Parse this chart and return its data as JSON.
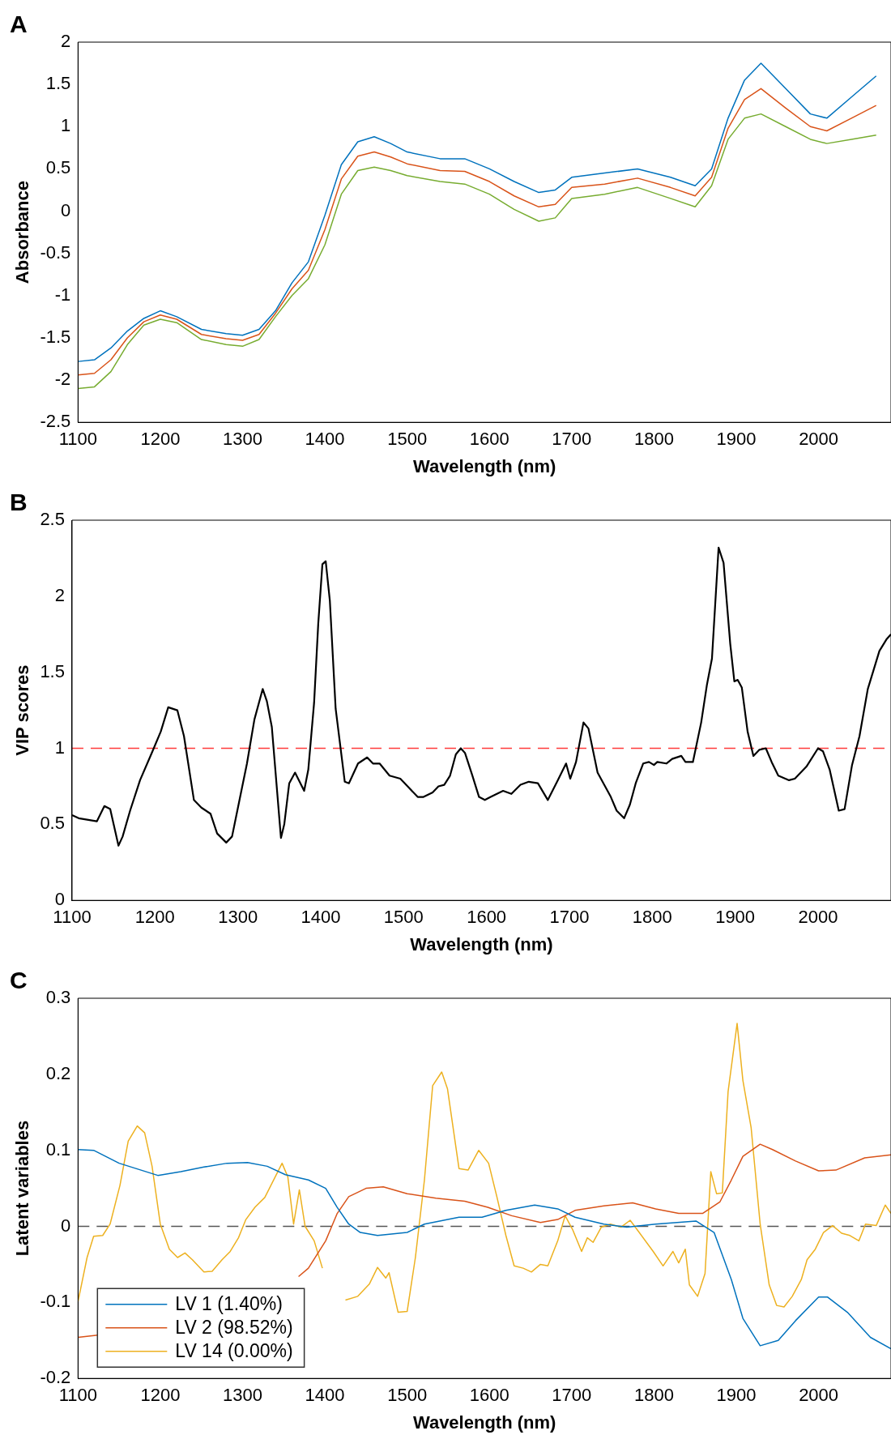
{
  "chart_data": [
    {
      "type": "line",
      "title": "A",
      "xlabel": "Wavelength (nm)",
      "ylabel": "Absorbance",
      "xlim": [
        1100,
        2088
      ],
      "xticks": [
        1100,
        1200,
        1300,
        1400,
        1500,
        1600,
        1700,
        1800,
        1900,
        2000
      ],
      "ylim": [
        -2.5,
        2
      ],
      "yticks": [
        -2.5,
        -2,
        -1.5,
        -1,
        -0.5,
        0,
        0.5,
        1,
        1.5,
        2
      ],
      "marker": "none",
      "line_style": "solid",
      "x": [
        1100,
        1120,
        1140,
        1160,
        1180,
        1200,
        1220,
        1250,
        1280,
        1300,
        1320,
        1340,
        1360,
        1380,
        1400,
        1420,
        1440,
        1460,
        1480,
        1500,
        1540,
        1570,
        1600,
        1630,
        1660,
        1680,
        1700,
        1740,
        1780,
        1820,
        1850,
        1870,
        1890,
        1910,
        1930,
        1960,
        1990,
        2010,
        2040,
        2070
      ],
      "series": [
        {
          "color": "#0072bd",
          "values": [
            -1.78,
            -1.76,
            -1.62,
            -1.42,
            -1.27,
            -1.18,
            -1.25,
            -1.4,
            -1.45,
            -1.47,
            -1.4,
            -1.18,
            -0.85,
            -0.6,
            -0.05,
            0.55,
            0.82,
            0.88,
            0.8,
            0.7,
            0.62,
            0.62,
            0.5,
            0.35,
            0.22,
            0.25,
            0.4,
            0.45,
            0.5,
            0.4,
            0.3,
            0.5,
            1.1,
            1.55,
            1.75,
            1.45,
            1.15,
            1.1,
            1.35,
            1.6
          ]
        },
        {
          "color": "#d95319",
          "values": [
            -1.94,
            -1.92,
            -1.76,
            -1.5,
            -1.31,
            -1.23,
            -1.28,
            -1.46,
            -1.51,
            -1.53,
            -1.46,
            -1.21,
            -0.92,
            -0.7,
            -0.22,
            0.38,
            0.65,
            0.7,
            0.64,
            0.56,
            0.48,
            0.47,
            0.35,
            0.18,
            0.05,
            0.08,
            0.28,
            0.32,
            0.39,
            0.28,
            0.18,
            0.4,
            0.98,
            1.32,
            1.45,
            1.22,
            1.0,
            0.95,
            1.1,
            1.25
          ]
        },
        {
          "color": "#77ac30",
          "values": [
            -2.1,
            -2.08,
            -1.9,
            -1.58,
            -1.35,
            -1.28,
            -1.32,
            -1.52,
            -1.58,
            -1.6,
            -1.52,
            -1.25,
            -1.0,
            -0.8,
            -0.4,
            0.2,
            0.48,
            0.52,
            0.48,
            0.42,
            0.35,
            0.32,
            0.2,
            0.02,
            -0.12,
            -0.08,
            0.15,
            0.2,
            0.28,
            0.15,
            0.05,
            0.3,
            0.85,
            1.1,
            1.15,
            1.0,
            0.85,
            0.8,
            0.85,
            0.9
          ]
        }
      ]
    },
    {
      "type": "line",
      "title": "B",
      "xlabel": "Wavelength (nm)",
      "ylabel": "VIP scores",
      "xlim": [
        1100,
        2088
      ],
      "xticks": [
        1100,
        1200,
        1300,
        1400,
        1500,
        1600,
        1700,
        1800,
        1900,
        2000
      ],
      "ylim": [
        0,
        2.5
      ],
      "yticks": [
        0,
        0.5,
        1,
        1.5,
        2,
        2.5
      ],
      "marker": "none",
      "line_style": "solid",
      "ref_lines": [
        {
          "axis": "y",
          "value": 1,
          "color": "#ff3b3b",
          "line_style": "dashed"
        }
      ],
      "x": [
        1100,
        1108,
        1130,
        1139,
        1146,
        1156,
        1161,
        1170,
        1182,
        1197,
        1207,
        1216,
        1227,
        1235,
        1247,
        1256,
        1267,
        1275,
        1286,
        1293,
        1302,
        1311,
        1320,
        1330,
        1335,
        1341,
        1352,
        1356,
        1362,
        1369,
        1380,
        1385,
        1392,
        1397,
        1402,
        1406,
        1411,
        1418,
        1429,
        1434,
        1445,
        1456,
        1463,
        1471,
        1483,
        1496,
        1503,
        1517,
        1524,
        1535,
        1542,
        1549,
        1556,
        1563,
        1569,
        1574,
        1583,
        1591,
        1598,
        1605,
        1620,
        1630,
        1641,
        1651,
        1662,
        1674,
        1686,
        1696,
        1701,
        1708,
        1717,
        1723,
        1734,
        1742,
        1750,
        1757,
        1766,
        1773,
        1780,
        1789,
        1796,
        1802,
        1806,
        1817,
        1824,
        1835,
        1840,
        1849,
        1859,
        1866,
        1872,
        1880,
        1886,
        1894,
        1899,
        1903,
        1908,
        1915,
        1922,
        1929,
        1937,
        1944,
        1952,
        1965,
        1972,
        1986,
        2000,
        2006,
        2014,
        2025,
        2032,
        2041,
        2050,
        2060,
        2074,
        2083,
        2088
      ],
      "series": [
        {
          "color": "#000000",
          "values": [
            0.56,
            0.54,
            0.52,
            0.62,
            0.6,
            0.36,
            0.42,
            0.59,
            0.79,
            0.98,
            1.11,
            1.27,
            1.25,
            1.08,
            0.66,
            0.61,
            0.57,
            0.44,
            0.38,
            0.42,
            0.66,
            0.9,
            1.19,
            1.39,
            1.31,
            1.14,
            0.41,
            0.5,
            0.77,
            0.84,
            0.72,
            0.86,
            1.3,
            1.82,
            2.21,
            2.23,
            1.97,
            1.26,
            0.78,
            0.77,
            0.9,
            0.94,
            0.9,
            0.9,
            0.82,
            0.8,
            0.76,
            0.68,
            0.68,
            0.71,
            0.75,
            0.76,
            0.82,
            0.96,
            1.0,
            0.97,
            0.82,
            0.68,
            0.66,
            0.68,
            0.72,
            0.7,
            0.76,
            0.78,
            0.77,
            0.66,
            0.79,
            0.9,
            0.8,
            0.91,
            1.17,
            1.13,
            0.84,
            0.76,
            0.68,
            0.59,
            0.54,
            0.63,
            0.77,
            0.9,
            0.91,
            0.89,
            0.91,
            0.9,
            0.93,
            0.95,
            0.91,
            0.91,
            1.17,
            1.42,
            1.59,
            2.32,
            2.22,
            1.69,
            1.44,
            1.45,
            1.4,
            1.11,
            0.95,
            0.99,
            1.0,
            0.91,
            0.82,
            0.79,
            0.8,
            0.88,
            1.0,
            0.98,
            0.86,
            0.59,
            0.6,
            0.89,
            1.08,
            1.39,
            1.64,
            1.72,
            1.75
          ]
        }
      ]
    },
    {
      "type": "line",
      "title": "C",
      "xlabel": "Wavelength (nm)",
      "ylabel": "Latent variables",
      "xlim": [
        1100,
        2088
      ],
      "xticks": [
        1100,
        1200,
        1300,
        1400,
        1500,
        1600,
        1700,
        1800,
        1900,
        2000
      ],
      "ylim": [
        -0.2,
        0.3
      ],
      "yticks": [
        -0.2,
        -0.1,
        0,
        0.1,
        0.2,
        0.3
      ],
      "marker": "none",
      "line_style": "solid",
      "legend": "bottom left",
      "ref_lines": [
        {
          "axis": "y",
          "value": 0,
          "color": "#555555",
          "line_style": "dashed"
        }
      ],
      "series": [
        {
          "name": "LV 1 (1.40%)",
          "color": "#0072bd",
          "x": [
            1100,
            1119,
            1150,
            1197,
            1225,
            1253,
            1281,
            1306,
            1330,
            1352,
            1380,
            1401,
            1415,
            1429,
            1443,
            1464,
            1500,
            1521,
            1563,
            1591,
            1620,
            1655,
            1683,
            1704,
            1739,
            1767,
            1802,
            1851,
            1873,
            1894,
            1908,
            1929,
            1951,
            1972,
            2000,
            2011,
            2035,
            2063,
            2088
          ],
          "values": [
            0.101,
            0.1,
            0.083,
            0.067,
            0.072,
            0.078,
            0.083,
            0.084,
            0.079,
            0.068,
            0.061,
            0.05,
            0.025,
            0.003,
            -0.008,
            -0.012,
            -0.008,
            0.003,
            0.012,
            0.012,
            0.021,
            0.028,
            0.023,
            0.012,
            0.003,
            -0.001,
            0.003,
            0.007,
            -0.008,
            -0.07,
            -0.121,
            -0.157,
            -0.15,
            -0.124,
            -0.093,
            -0.093,
            -0.113,
            -0.146,
            -0.161
          ]
        },
        {
          "name": "LV 2 (98.52%)",
          "color": "#d95319",
          "x": [
            1100,
            1124,
            1240,
            1368,
            1380,
            1401,
            1415,
            1429,
            1450,
            1471,
            1500,
            1535,
            1570,
            1598,
            1627,
            1662,
            1683,
            1704,
            1739,
            1774,
            1802,
            1830,
            1859,
            1880,
            1894,
            1908,
            1929,
            1944,
            1972,
            2000,
            2021,
            2056,
            2088
          ],
          "values": [
            -0.146,
            -0.143,
            null,
            -0.066,
            -0.055,
            -0.019,
            0.017,
            0.039,
            0.05,
            0.052,
            0.043,
            0.037,
            0.033,
            0.025,
            0.014,
            0.005,
            0.009,
            0.021,
            0.027,
            0.031,
            0.023,
            0.017,
            0.017,
            0.032,
            0.061,
            0.092,
            0.108,
            0.101,
            0.086,
            0.073,
            0.074,
            0.09,
            0.094
          ]
        },
        {
          "name": "LV 14 (0.00%)",
          "color": "#edb120",
          "x": [
            1100,
            1111,
            1119,
            1130,
            1139,
            1151,
            1161,
            1172,
            1181,
            1190,
            1200,
            1211,
            1221,
            1230,
            1239,
            1253,
            1263,
            1275,
            1285,
            1295,
            1304,
            1315,
            1327,
            1348,
            1355,
            1362,
            1369,
            1376,
            1387,
            1397,
            1410,
            1425,
            1440,
            1454,
            1464,
            1474,
            1478,
            1489,
            1500,
            1510,
            1521,
            1531,
            1542,
            1549,
            1563,
            1574,
            1587,
            1599,
            1609,
            1620,
            1630,
            1641,
            1651,
            1662,
            1671,
            1683,
            1692,
            1701,
            1712,
            1719,
            1726,
            1736,
            1747,
            1760,
            1771,
            1782,
            1799,
            1811,
            1823,
            1830,
            1838,
            1843,
            1853,
            1862,
            1869,
            1876,
            1883,
            1890,
            1901,
            1908,
            1918,
            1929,
            1940,
            1949,
            1958,
            1968,
            1979,
            1986,
            1996,
            2006,
            2017,
            2028,
            2038,
            2049,
            2057,
            2070,
            2081,
            2088
          ],
          "values": [
            -0.099,
            -0.041,
            -0.013,
            -0.012,
            0.003,
            0.054,
            0.112,
            0.132,
            0.123,
            0.079,
            0.003,
            -0.03,
            -0.041,
            -0.035,
            -0.044,
            -0.06,
            -0.059,
            -0.044,
            -0.033,
            -0.015,
            0.009,
            0.025,
            0.038,
            0.083,
            0.065,
            0.003,
            0.048,
            0.0,
            -0.019,
            -0.055,
            null,
            -0.097,
            -0.092,
            -0.076,
            -0.054,
            -0.068,
            -0.061,
            -0.113,
            -0.112,
            -0.041,
            0.061,
            0.185,
            0.203,
            0.181,
            0.076,
            0.074,
            0.1,
            0.083,
            0.039,
            -0.012,
            -0.052,
            -0.055,
            -0.06,
            -0.05,
            -0.052,
            -0.019,
            0.014,
            -0.004,
            -0.033,
            -0.015,
            -0.021,
            -0.001,
            0.003,
            -0.001,
            0.008,
            -0.008,
            -0.033,
            -0.052,
            -0.033,
            -0.048,
            -0.03,
            -0.077,
            -0.092,
            -0.062,
            0.072,
            0.043,
            0.044,
            0.177,
            0.267,
            0.192,
            0.13,
            0.003,
            -0.077,
            -0.104,
            -0.106,
            -0.092,
            -0.07,
            -0.044,
            -0.03,
            -0.008,
            0.001,
            -0.009,
            -0.012,
            -0.019,
            0.003,
            0.001,
            0.028,
            0.017
          ]
        }
      ]
    }
  ]
}
